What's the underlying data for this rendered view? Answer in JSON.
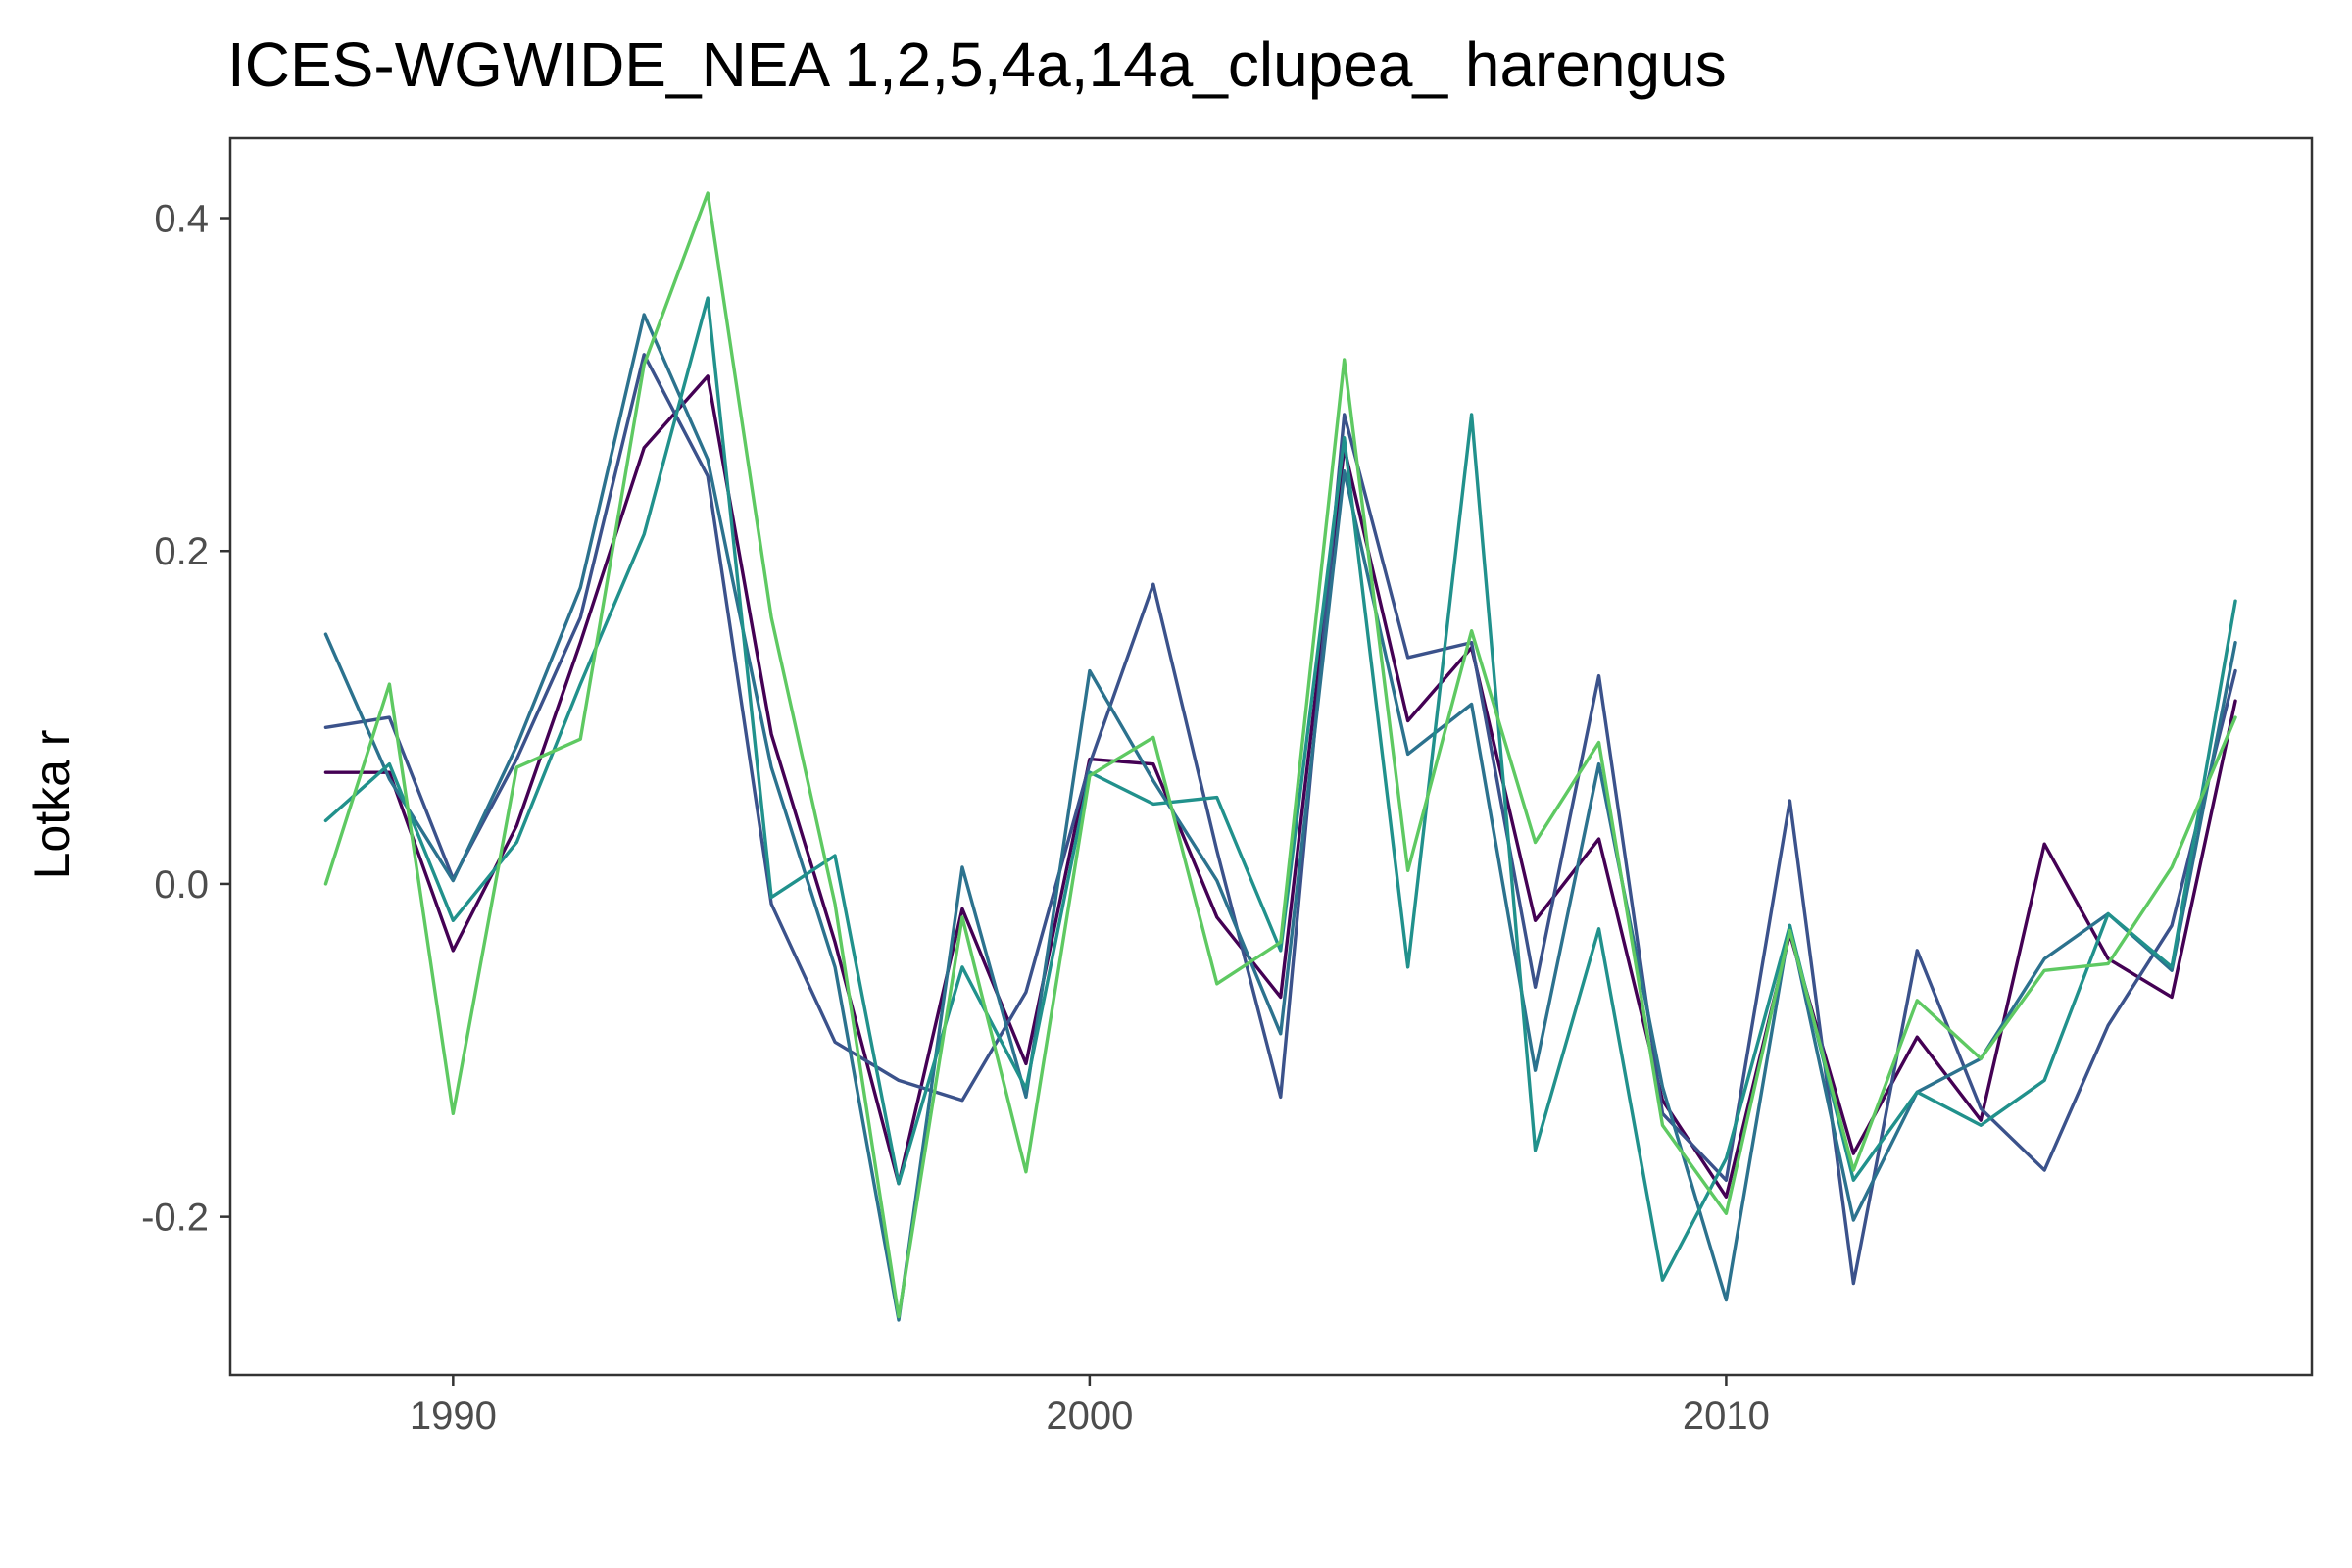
{
  "chart_data": {
    "type": "line",
    "title": "ICES-WGWIDE_NEA 1,2,5,4a,14a_clupea_ harengus",
    "xlabel": "",
    "ylabel": "Lotka r",
    "xlim": [
      1986.5,
      2019.2
    ],
    "ylim": [
      -0.295,
      0.448
    ],
    "x_ticks": [
      1990,
      2000,
      2010
    ],
    "x_tick_labels": [
      "1990",
      "2000",
      "2010"
    ],
    "y_ticks": [
      -0.2,
      0.0,
      0.2,
      0.4
    ],
    "y_tick_labels": [
      "-0.2",
      "0.0",
      "0.2",
      "0.4"
    ],
    "grid": false,
    "legend": "none",
    "x": [
      1988,
      1989,
      1990,
      1991,
      1992,
      1993,
      1994,
      1995,
      1996,
      1997,
      1998,
      1999,
      2000,
      2001,
      2002,
      2003,
      2004,
      2005,
      2006,
      2007,
      2008,
      2009,
      2010,
      2011,
      2012,
      2013,
      2014,
      2015,
      2016,
      2017,
      2018
    ],
    "series": [
      {
        "color": "#440154",
        "values": [
          0.067,
          0.067,
          -0.04,
          0.035,
          0.145,
          0.262,
          0.305,
          0.09,
          -0.035,
          -0.18,
          -0.015,
          -0.108,
          0.075,
          0.072,
          -0.02,
          -0.068,
          0.262,
          0.098,
          0.142,
          -0.022,
          0.027,
          -0.13,
          -0.188,
          -0.03,
          -0.162,
          -0.092,
          -0.142,
          0.024,
          -0.045,
          -0.068,
          0.11
        ]
      },
      {
        "color": "#3b528b",
        "values": [
          0.094,
          0.1,
          0.003,
          0.075,
          0.16,
          0.318,
          0.245,
          -0.012,
          -0.095,
          -0.118,
          -0.13,
          -0.065,
          0.072,
          0.18,
          0.02,
          -0.128,
          0.282,
          0.136,
          0.145,
          -0.062,
          0.125,
          -0.138,
          -0.178,
          0.05,
          -0.24,
          -0.04,
          -0.135,
          -0.172,
          -0.085,
          -0.025,
          0.128
        ]
      },
      {
        "color": "#2c728e",
        "values": [
          0.15,
          0.063,
          0.002,
          0.083,
          0.178,
          0.342,
          0.255,
          0.07,
          -0.05,
          -0.262,
          0.01,
          -0.128,
          0.128,
          0.062,
          0.002,
          -0.09,
          0.248,
          0.078,
          0.108,
          -0.112,
          0.072,
          -0.122,
          -0.25,
          -0.025,
          -0.202,
          -0.125,
          -0.105,
          -0.045,
          -0.018,
          -0.052,
          0.145
        ]
      },
      {
        "color": "#21918c",
        "values": [
          0.038,
          0.072,
          -0.022,
          0.025,
          0.12,
          0.21,
          0.352,
          -0.008,
          0.017,
          -0.18,
          -0.05,
          -0.123,
          0.067,
          0.048,
          0.052,
          -0.04,
          0.268,
          -0.05,
          0.282,
          -0.16,
          -0.027,
          -0.238,
          -0.165,
          -0.025,
          -0.178,
          -0.125,
          -0.145,
          -0.118,
          -0.018,
          -0.05,
          0.17
        ]
      },
      {
        "color": "#5ec962",
        "values": [
          0.0,
          0.12,
          -0.138,
          0.07,
          0.087,
          0.312,
          0.415,
          0.16,
          -0.012,
          -0.26,
          -0.02,
          -0.173,
          0.065,
          0.088,
          -0.06,
          -0.035,
          0.315,
          0.008,
          0.152,
          0.025,
          0.085,
          -0.145,
          -0.198,
          -0.028,
          -0.172,
          -0.07,
          -0.105,
          -0.052,
          -0.048,
          0.01,
          0.1
        ]
      }
    ]
  }
}
